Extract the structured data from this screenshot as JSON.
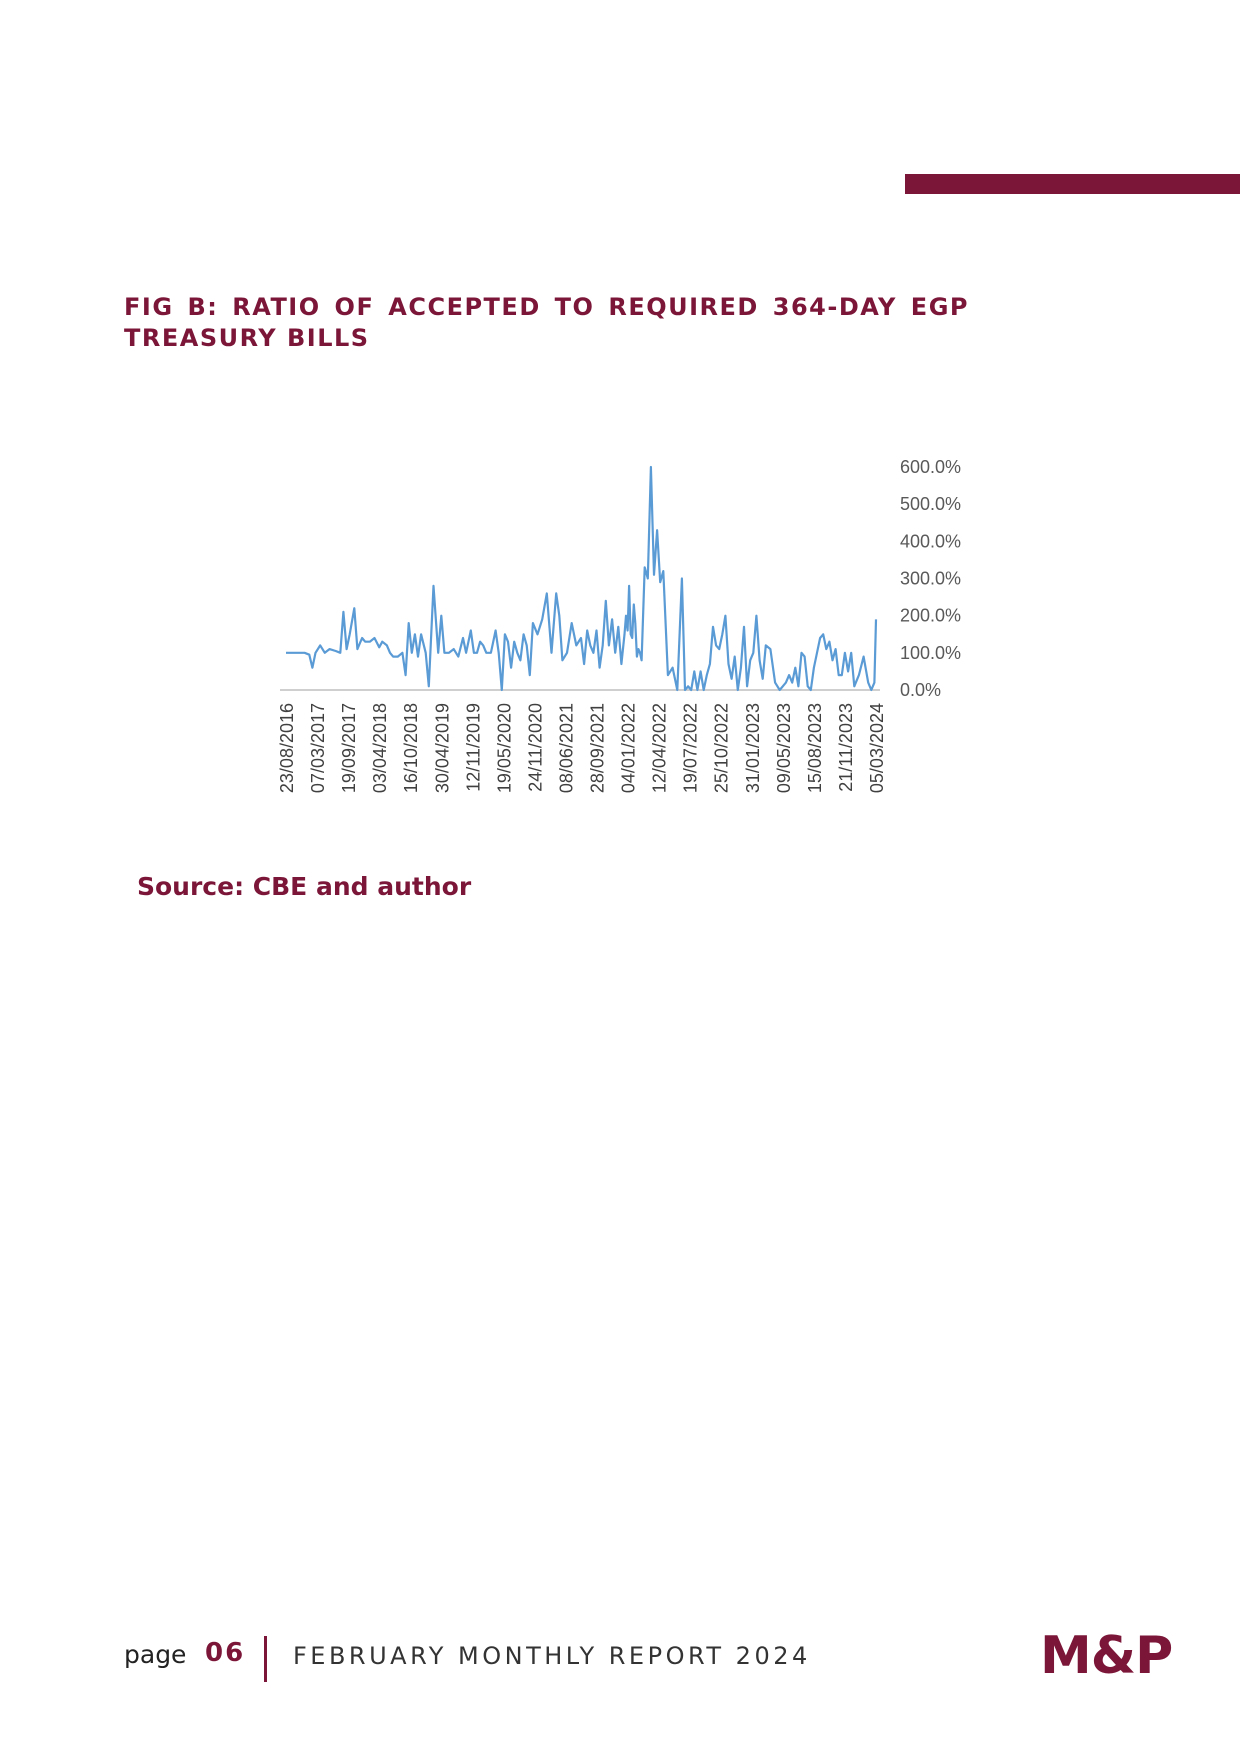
{
  "header": {
    "accent_color": "#7b1638"
  },
  "figure": {
    "title": "FIG B: RATIO OF ACCEPTED TO REQUIRED 364-DAY EGP TREASURY BILLS",
    "source": "Source: CBE and author"
  },
  "footer": {
    "page_label": "page",
    "page_number": "06",
    "report_title": "FEBRUARY MONTHLY REPORT 2024",
    "logo": "M&P"
  },
  "chart_data": {
    "type": "line",
    "title": "",
    "xlabel": "",
    "ylabel": "",
    "line_color": "#5b9bd5",
    "y_axis_position": "right",
    "ylim": [
      0,
      600
    ],
    "y_ticks": [
      0,
      100,
      200,
      300,
      400,
      500,
      600
    ],
    "y_tick_labels": [
      "0.0%",
      "100.0%",
      "200.0%",
      "300.0%",
      "400.0%",
      "500.0%",
      "600.0%"
    ],
    "x_tick_labels": [
      "23/08/2016",
      "07/03/2017",
      "19/09/2017",
      "03/04/2018",
      "16/10/2018",
      "30/04/2019",
      "12/11/2019",
      "19/05/2020",
      "24/11/2020",
      "08/06/2021",
      "28/09/2021",
      "04/01/2022",
      "12/04/2022",
      "19/07/2022",
      "25/10/2022",
      "31/01/2023",
      "09/05/2023",
      "15/08/2023",
      "21/11/2023",
      "05/03/2024"
    ],
    "x_range": [
      0,
      19
    ],
    "series": [
      {
        "x": [
          0,
          0.3,
          0.6,
          0.75,
          0.85,
          0.95,
          1.1,
          1.25,
          1.4,
          1.6,
          1.75,
          1.85,
          1.95,
          2.05,
          2.2,
          2.3,
          2.45,
          2.55,
          2.7,
          2.85,
          3.0,
          3.1,
          3.25,
          3.35,
          3.45,
          3.6,
          3.75,
          3.85,
          3.95,
          4.05,
          4.15,
          4.25,
          4.35,
          4.5,
          4.6,
          4.75,
          4.9,
          5.0,
          5.1,
          5.25,
          5.4,
          5.55,
          5.7,
          5.8,
          5.95,
          6.05,
          6.15,
          6.25,
          6.35,
          6.45,
          6.6,
          6.75,
          6.85,
          6.95,
          7.05,
          7.15,
          7.25,
          7.35,
          7.45,
          7.55,
          7.65,
          7.75,
          7.85,
          7.95,
          8.1,
          8.25,
          8.4,
          8.55,
          8.7,
          8.8,
          8.9,
          9.05,
          9.2,
          9.35,
          9.5,
          9.6,
          9.7,
          9.8,
          9.9,
          10.0,
          10.1,
          10.2,
          10.3,
          10.4,
          10.5,
          10.6,
          10.7,
          10.8,
          10.9,
          10.95,
          11.0,
          11.05,
          11.1,
          11.15,
          11.2,
          11.25,
          11.3,
          11.35,
          11.4,
          11.45,
          11.55,
          11.65,
          11.75,
          11.85,
          11.95,
          12.05,
          12.15,
          12.3,
          12.45,
          12.6,
          12.75,
          12.85,
          12.95,
          13.05,
          13.15,
          13.25,
          13.35,
          13.45,
          13.55,
          13.65,
          13.75,
          13.85,
          13.95,
          14.05,
          14.15,
          14.25,
          14.35,
          14.45,
          14.55,
          14.65,
          14.75,
          14.85,
          14.95,
          15.05,
          15.15,
          15.25,
          15.35,
          15.45,
          15.6,
          15.75,
          15.9,
          16.0,
          16.1,
          16.2,
          16.3,
          16.4,
          16.5,
          16.6,
          16.7,
          16.8,
          16.9,
          17.0,
          17.1,
          17.2,
          17.3,
          17.4,
          17.5,
          17.6,
          17.7,
          17.8,
          17.9,
          18.0,
          18.1,
          18.2,
          18.3,
          18.45,
          18.6,
          18.75,
          18.85,
          18.95,
          19.0
        ],
        "y": [
          100,
          100,
          100,
          95,
          60,
          100,
          120,
          100,
          110,
          105,
          100,
          210,
          110,
          150,
          220,
          110,
          140,
          130,
          130,
          140,
          115,
          130,
          120,
          100,
          90,
          90,
          100,
          40,
          180,
          100,
          150,
          90,
          150,
          100,
          10,
          280,
          100,
          200,
          100,
          100,
          110,
          90,
          140,
          100,
          160,
          100,
          100,
          130,
          120,
          100,
          100,
          160,
          100,
          0,
          150,
          130,
          60,
          130,
          100,
          80,
          150,
          120,
          40,
          180,
          150,
          190,
          260,
          100,
          260,
          200,
          80,
          100,
          180,
          120,
          140,
          70,
          160,
          120,
          100,
          160,
          60,
          120,
          240,
          120,
          190,
          100,
          170,
          70,
          150,
          200,
          160,
          280,
          150,
          140,
          230,
          180,
          90,
          110,
          100,
          80,
          330,
          300,
          600,
          310,
          430,
          290,
          320,
          40,
          60,
          0,
          300,
          0,
          10,
          0,
          50,
          0,
          50,
          0,
          40,
          70,
          170,
          120,
          110,
          150,
          200,
          70,
          30,
          90,
          0,
          60,
          170,
          10,
          80,
          100,
          200,
          80,
          30,
          120,
          110,
          20,
          0,
          10,
          20,
          40,
          20,
          60,
          10,
          100,
          90,
          10,
          0,
          60,
          100,
          140,
          150,
          110,
          130,
          80,
          110,
          40,
          40,
          100,
          50,
          100,
          10,
          40,
          90,
          20,
          0,
          20,
          190
        ]
      }
    ]
  }
}
